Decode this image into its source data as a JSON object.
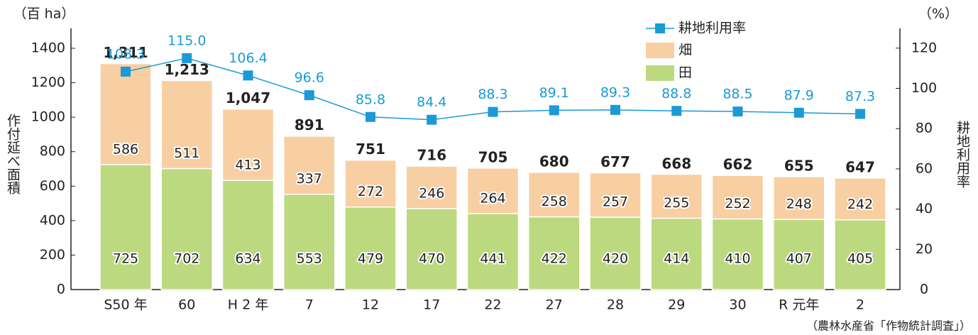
{
  "chart_data": {
    "type": "bar",
    "y_unit": "（百 ha）",
    "ylabel": "作付延べ面積",
    "y2_unit": "（%）",
    "y2label": "耕地利用率",
    "source": "（農林水産省「作物統計調査」）",
    "categories": [
      "S50 年",
      "60",
      "H 2 年",
      "7",
      "12",
      "17",
      "22",
      "27",
      "28",
      "29",
      "30",
      "R 元年",
      "2"
    ],
    "series": [
      {
        "name": "田",
        "color": "#bcd97f",
        "values": [
          725,
          702,
          634,
          553,
          479,
          470,
          441,
          422,
          420,
          414,
          410,
          407,
          405
        ]
      },
      {
        "name": "畑",
        "color": "#f8cfa3",
        "values": [
          586,
          511,
          413,
          337,
          272,
          246,
          264,
          258,
          257,
          255,
          252,
          248,
          242
        ]
      },
      {
        "name": "耕地利用率",
        "color": "#1a9ad6",
        "axis": "y2",
        "values": [
          108.3,
          115,
          106.4,
          96.6,
          85.8,
          84.4,
          88.3,
          89.1,
          89.3,
          88.8,
          88.5,
          87.9,
          87.3
        ],
        "value_labels": [
          "108.3",
          "115.0",
          "106.4",
          "96.6",
          "85.8",
          "84.4",
          "88.3",
          "89.1",
          "89.3",
          "88.8",
          "88.5",
          "87.9",
          "87.3"
        ]
      }
    ],
    "totals": [
      1311,
      1213,
      1047,
      891,
      751,
      716,
      705,
      680,
      677,
      668,
      662,
      655,
      647
    ],
    "total_labels": [
      "1,311",
      "1,213",
      "1,047",
      "891",
      "751",
      "716",
      "705",
      "680",
      "677",
      "668",
      "662",
      "655",
      "647"
    ],
    "ylim": [
      0,
      1500
    ],
    "yticks": [
      0,
      200,
      400,
      600,
      800,
      1000,
      1200,
      1400
    ],
    "y2lim": [
      0,
      128.5
    ],
    "y2ticks": [
      0,
      20,
      40,
      60,
      80,
      100,
      120
    ]
  }
}
